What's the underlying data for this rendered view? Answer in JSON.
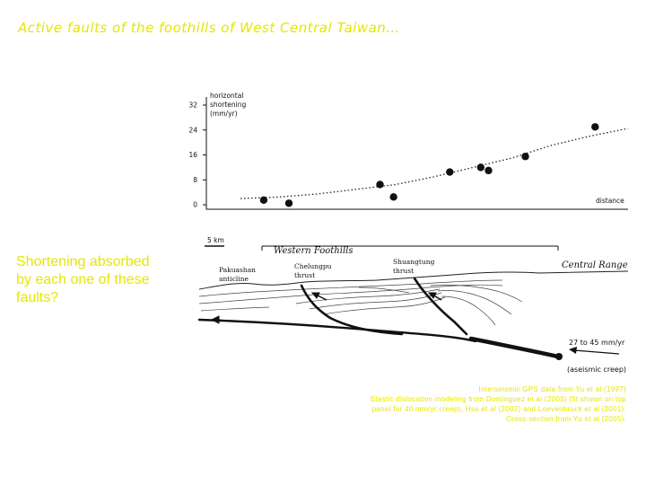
{
  "title": "Active faults of the foothills of West Central Taiwan…",
  "question": [
    "Shortening absorbed",
    "by each one of these",
    "faults?"
  ],
  "credits": [
    "Interseismic GPS data from Yu et al (1997)",
    "Elastic dislocation modeling from Dominguez et al (2003) (fit shown on top",
    "panel for 40 mm/yr creep), Hsu et al (2002) and Loevenbruck et al (2001).",
    "Cross-section from Yu et al (2005)."
  ],
  "colors": {
    "text_accent": "#e6e600",
    "ink": "#111111"
  },
  "chart_data": {
    "type": "scatter",
    "ylabel": [
      "horizontal",
      "shortening",
      "(mm/yr)"
    ],
    "xlabel": "distance",
    "yticks": [
      0,
      8,
      16,
      24,
      32
    ],
    "ylim": [
      0,
      32
    ],
    "xlim": [
      0,
      100
    ],
    "points": [
      {
        "x": 6,
        "y": 1.5
      },
      {
        "x": 12.5,
        "y": 0.5
      },
      {
        "x": 36,
        "y": 6.5
      },
      {
        "x": 39.5,
        "y": 2.5
      },
      {
        "x": 54,
        "y": 10.5
      },
      {
        "x": 62,
        "y": 12
      },
      {
        "x": 64,
        "y": 11
      },
      {
        "x": 73.5,
        "y": 15.5
      },
      {
        "x": 91.5,
        "y": 25
      }
    ],
    "model_fit": [
      {
        "x": 0,
        "y": 2
      },
      {
        "x": 10,
        "y": 2.5
      },
      {
        "x": 20,
        "y": 3.5
      },
      {
        "x": 30,
        "y": 5
      },
      {
        "x": 40,
        "y": 6.5
      },
      {
        "x": 50,
        "y": 9
      },
      {
        "x": 60,
        "y": 12
      },
      {
        "x": 70,
        "y": 15
      },
      {
        "x": 80,
        "y": 19
      },
      {
        "x": 90,
        "y": 22
      },
      {
        "x": 100,
        "y": 24.5
      }
    ],
    "fit_style": "dotted"
  },
  "section": {
    "scale_label": "5 km",
    "region_label": "Western Foothills",
    "labels": {
      "pakuashan": [
        "Pakuashan",
        "anticline"
      ],
      "chelungpu": [
        "Chelungpu",
        "thrust"
      ],
      "shuangtung": [
        "Shuangtung",
        "thrust"
      ],
      "central_range": "Central Range",
      "rate": "27 to 45 mm/yr",
      "creep": "(aseismic creep)"
    }
  }
}
